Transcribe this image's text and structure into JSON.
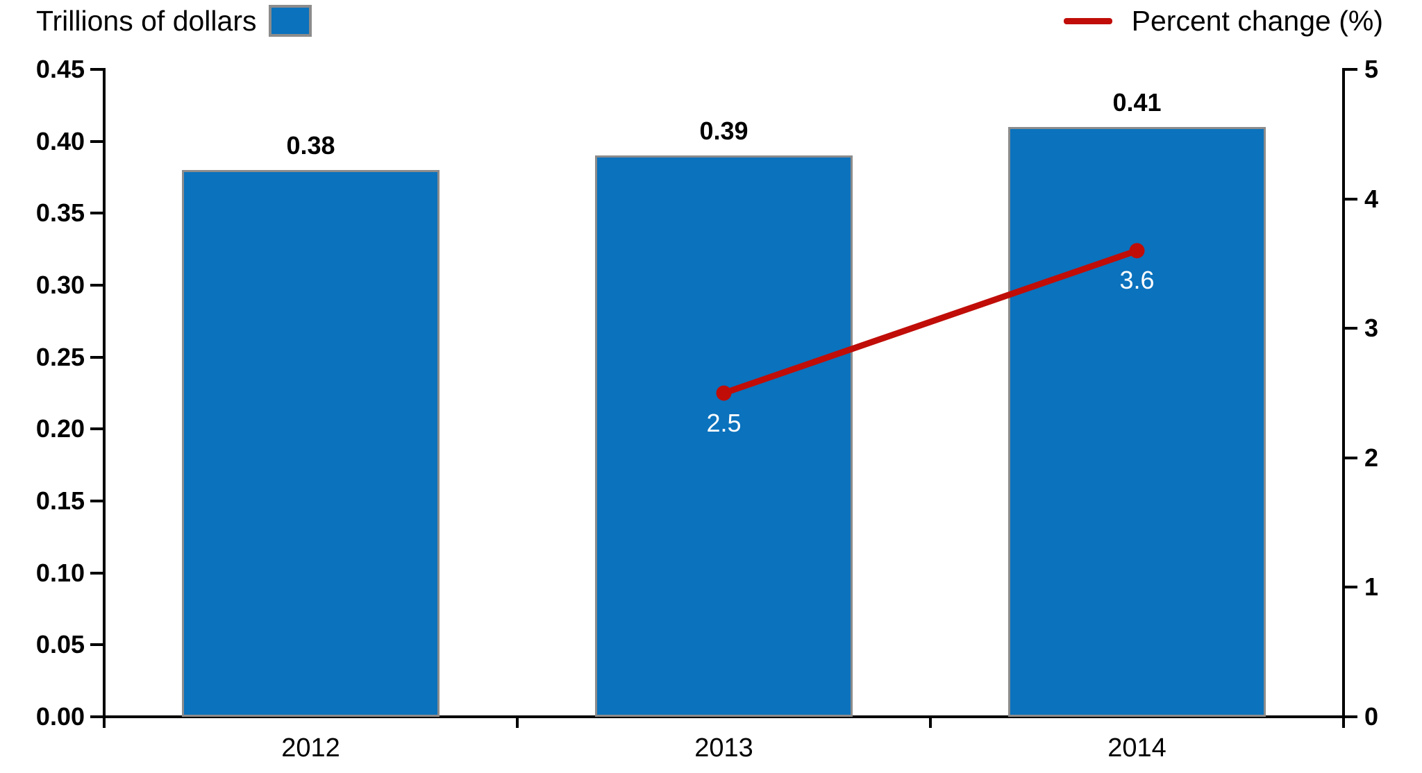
{
  "legend": {
    "bars_label": "Trillions of dollars",
    "line_label": "Percent change (%)"
  },
  "colors": {
    "bar_fill": "#0b72bd",
    "bar_border": "#8c8c8c",
    "line": "#c00d08",
    "line_data_label": "#ffffff",
    "text": "#000000",
    "axis": "#000000"
  },
  "chart_data": {
    "type": "bar",
    "subtype": "bar-and-line-dual-axis",
    "categories": [
      "2012",
      "2013",
      "2014"
    ],
    "series": [
      {
        "name": "Trillions of dollars",
        "type": "bar",
        "axis": "left",
        "values": [
          0.38,
          0.39,
          0.41
        ],
        "data_labels": [
          "0.38",
          "0.39",
          "0.41"
        ]
      },
      {
        "name": "Percent change (%)",
        "type": "line",
        "axis": "right",
        "values": [
          null,
          2.5,
          3.6
        ],
        "data_labels": [
          null,
          "2.5",
          "3.6"
        ]
      }
    ],
    "left_axis": {
      "min": 0,
      "max": 0.45,
      "step": 0.05,
      "tick_labels": [
        "0.00",
        "0.05",
        "0.10",
        "0.15",
        "0.20",
        "0.25",
        "0.30",
        "0.35",
        "0.40",
        "0.45"
      ]
    },
    "right_axis": {
      "min": 0,
      "max": 5,
      "step": 1,
      "tick_labels": [
        "0",
        "1",
        "2",
        "3",
        "4",
        "5"
      ]
    },
    "grid": false,
    "legend_position": "top",
    "title": ""
  }
}
